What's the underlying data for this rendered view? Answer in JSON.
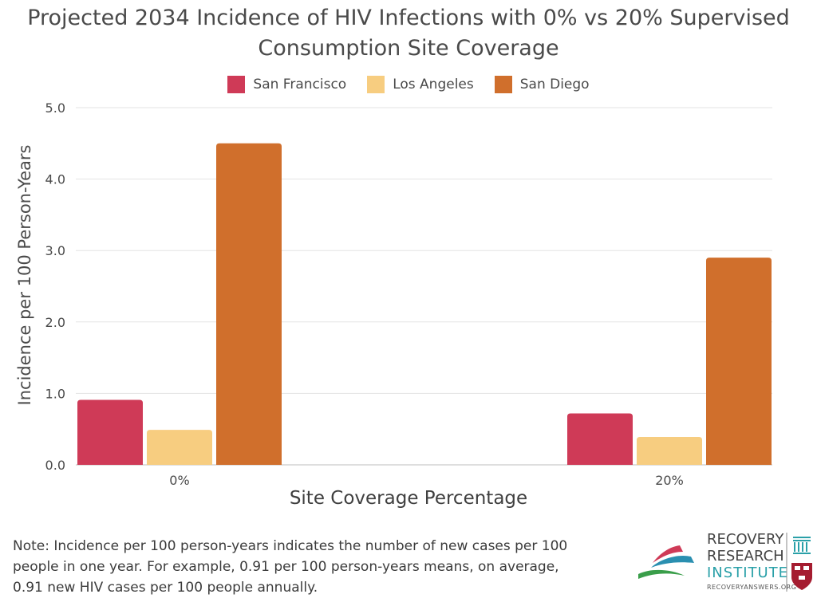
{
  "chart_data": {
    "type": "bar",
    "title": "Projected 2034 Incidence of HIV Infections with 0% vs 20% Supervised Consumption Site Coverage",
    "title_lines": [
      "Projected 2034 Incidence of HIV Infections with 0% vs 20% Supervised",
      "Consumption Site Coverage"
    ],
    "xlabel": "Site Coverage Percentage",
    "ylabel": "Incidence per 100 Person-Years",
    "categories": [
      "0%",
      "20%"
    ],
    "series": [
      {
        "name": "San Francisco",
        "color": "#cf3a57",
        "values": [
          0.91,
          0.72
        ]
      },
      {
        "name": "Los Angeles",
        "color": "#f7cd80",
        "values": [
          0.49,
          0.39
        ]
      },
      {
        "name": "San Diego",
        "color": "#d06f2c",
        "values": [
          4.5,
          2.9
        ]
      }
    ],
    "ylim": [
      0,
      5
    ],
    "yticks": [
      "0.0",
      "1.0",
      "2.0",
      "3.0",
      "4.0",
      "5.0"
    ],
    "grid": true,
    "legend_position": "top-center"
  },
  "note": {
    "lines": [
      "Note: Incidence per 100 person-years indicates the number of new cases per 100",
      "people in one year. For example, 0.91 per 100 person-years means, on average,",
      "0.91 new HIV cases per 100 people annually."
    ]
  },
  "logo": {
    "line1": "RECOVERY",
    "line2": "RESEARCH",
    "line3": "INSTITUTE",
    "url": "RECOVERYANSWERS.ORG"
  }
}
